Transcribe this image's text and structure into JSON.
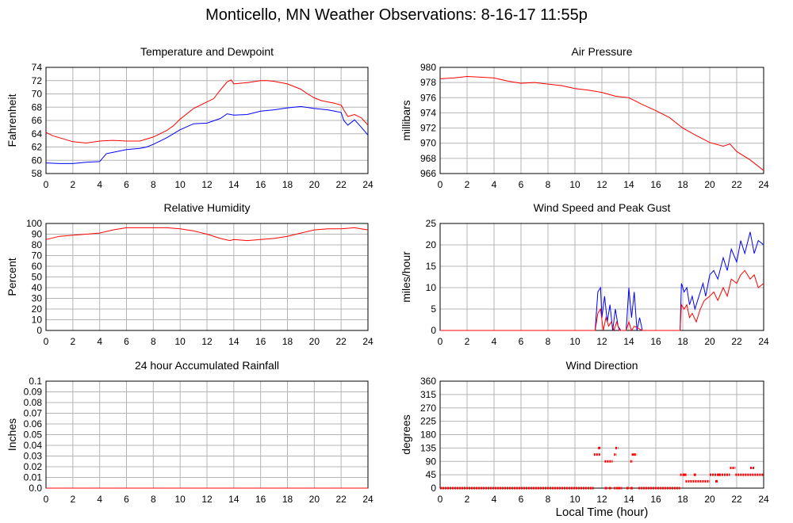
{
  "page": {
    "title": "Monticello, MN Weather Observations: 8-16-17 11:55p"
  },
  "colors": {
    "red": "#ff0000",
    "blue": "#0000ff",
    "grid": "#b4b4b4",
    "frame": "#000000"
  },
  "chart_data": [
    {
      "id": "temp",
      "type": "line",
      "title": "Temperature and Dewpoint",
      "xlabel": "",
      "ylabel": "Fahrenheit",
      "xlim": [
        0,
        24
      ],
      "ylim": [
        58,
        74
      ],
      "xticks": [
        0,
        2,
        4,
        6,
        8,
        10,
        12,
        14,
        16,
        18,
        20,
        22,
        24
      ],
      "yticks": [
        58,
        60,
        62,
        64,
        66,
        68,
        70,
        72,
        74
      ],
      "series": [
        {
          "color": "#ff0000",
          "x": [
            0,
            0.5,
            1,
            1.5,
            2,
            3,
            4,
            5,
            6,
            7,
            8,
            8.5,
            9,
            9.5,
            10,
            11,
            12,
            12.5,
            13,
            13.5,
            13.8,
            14,
            15,
            16,
            16.5,
            17,
            18,
            19,
            19.5,
            20,
            20.5,
            21,
            21.5,
            22,
            22.2,
            22.5,
            23,
            23.5,
            24
          ],
          "y": [
            64.2,
            63.7,
            63.4,
            63.1,
            62.8,
            62.6,
            62.9,
            63.0,
            62.9,
            62.9,
            63.5,
            64.0,
            64.5,
            65.2,
            66.2,
            67.8,
            68.8,
            69.3,
            70.6,
            71.8,
            72.1,
            71.5,
            71.7,
            72.0,
            72.0,
            71.9,
            71.5,
            70.7,
            70.0,
            69.4,
            69.0,
            68.8,
            68.6,
            68.3,
            67.6,
            66.6,
            66.9,
            66.4,
            65.3
          ]
        },
        {
          "color": "#0000ff",
          "x": [
            0,
            1,
            2,
            3,
            4,
            4.5,
            5,
            6,
            7,
            7.5,
            8,
            9,
            10,
            11,
            12,
            13,
            13.5,
            14,
            15,
            16,
            17,
            18,
            19,
            20,
            21,
            21.5,
            22,
            22.2,
            22.5,
            23,
            23.5,
            24
          ],
          "y": [
            59.6,
            59.5,
            59.5,
            59.7,
            59.8,
            61.0,
            61.2,
            61.6,
            61.8,
            62.0,
            62.4,
            63.4,
            64.6,
            65.5,
            65.6,
            66.3,
            67.0,
            66.8,
            66.9,
            67.4,
            67.6,
            67.9,
            68.1,
            67.8,
            67.6,
            67.4,
            67.2,
            66.0,
            65.3,
            66.1,
            65.0,
            63.8
          ]
        }
      ]
    },
    {
      "id": "pressure",
      "type": "line",
      "title": "Air Pressure",
      "xlabel": "",
      "ylabel": "millibars",
      "xlim": [
        0,
        24
      ],
      "ylim": [
        966,
        980
      ],
      "xticks": [
        0,
        2,
        4,
        6,
        8,
        10,
        12,
        14,
        16,
        18,
        20,
        22,
        24
      ],
      "yticks": [
        966,
        968,
        970,
        972,
        974,
        976,
        978,
        980
      ],
      "series": [
        {
          "color": "#ff0000",
          "x": [
            0,
            1,
            2,
            3,
            4,
            5,
            6,
            7,
            8,
            9,
            10,
            11,
            12,
            13,
            14,
            15,
            16,
            17,
            18,
            19,
            20,
            21,
            21.5,
            22,
            23,
            24
          ],
          "y": [
            978.5,
            978.6,
            978.8,
            978.7,
            978.6,
            978.2,
            977.9,
            978.0,
            977.8,
            977.6,
            977.2,
            977.0,
            976.7,
            976.2,
            976.0,
            975.1,
            974.3,
            973.4,
            972.0,
            971.0,
            970.1,
            969.6,
            969.9,
            968.9,
            967.8,
            966.4
          ]
        }
      ]
    },
    {
      "id": "humidity",
      "type": "line",
      "title": "Relative Humidity",
      "xlabel": "",
      "ylabel": "Percent",
      "xlim": [
        0,
        24
      ],
      "ylim": [
        0,
        100
      ],
      "xticks": [
        0,
        2,
        4,
        6,
        8,
        10,
        12,
        14,
        16,
        18,
        20,
        22,
        24
      ],
      "yticks": [
        0,
        10,
        20,
        30,
        40,
        50,
        60,
        70,
        80,
        90,
        100
      ],
      "series": [
        {
          "color": "#ff0000",
          "x": [
            0,
            1,
            2,
            3,
            4,
            5,
            6,
            7,
            8,
            9,
            10,
            11,
            12,
            13,
            13.7,
            14,
            15,
            16,
            17,
            18,
            19,
            20,
            21,
            22,
            23,
            24
          ],
          "y": [
            85,
            88,
            89,
            90,
            91,
            94,
            96,
            96,
            96,
            96,
            95,
            93,
            90,
            86,
            84,
            85,
            84,
            85,
            86,
            88,
            91,
            94,
            95,
            95,
            96,
            94
          ]
        }
      ]
    },
    {
      "id": "wind",
      "type": "line",
      "title": "Wind Speed and Peak Gust",
      "xlabel": "",
      "ylabel": "miles/hour",
      "xlim": [
        0,
        24
      ],
      "ylim": [
        0,
        25
      ],
      "xticks": [
        0,
        2,
        4,
        6,
        8,
        10,
        12,
        14,
        16,
        18,
        20,
        22,
        24
      ],
      "yticks": [
        0,
        5,
        10,
        15,
        20,
        25
      ],
      "series": [
        {
          "color": "#0000ff",
          "x": [
            0,
            11.5,
            11.7,
            11.9,
            12.0,
            12.2,
            12.4,
            12.6,
            12.8,
            13.0,
            13.2,
            13.4,
            13.8,
            14.0,
            14.2,
            14.4,
            14.6,
            14.8,
            15,
            17.8,
            17.9,
            18.1,
            18.3,
            18.5,
            18.7,
            18.9,
            19.1,
            19.3,
            19.5,
            19.7,
            20,
            20.3,
            20.6,
            21,
            21.3,
            21.6,
            22,
            22.3,
            22.6,
            23,
            23.3,
            23.6,
            24
          ],
          "y": [
            0,
            0,
            9,
            10,
            3,
            8,
            2,
            6,
            0,
            5,
            1,
            0,
            0,
            10,
            3,
            9,
            0,
            3,
            0,
            0,
            11,
            9,
            10,
            6,
            8,
            5,
            7,
            9,
            11,
            8,
            13,
            14,
            12,
            17,
            14,
            19,
            16,
            21,
            18,
            23,
            18,
            21,
            20
          ]
        },
        {
          "color": "#ff0000",
          "x": [
            0,
            11.5,
            11.7,
            11.9,
            12.1,
            12.3,
            12.5,
            12.7,
            12.9,
            13.1,
            13.3,
            13.8,
            14.0,
            14.2,
            14.4,
            15,
            17.8,
            17.9,
            18.1,
            18.3,
            18.5,
            18.7,
            19,
            19.3,
            19.6,
            20,
            20.3,
            20.6,
            21,
            21.3,
            21.6,
            22,
            22.3,
            22.6,
            23,
            23.3,
            23.6,
            24
          ],
          "y": [
            0,
            0,
            4,
            5,
            0,
            3,
            1,
            2,
            0,
            2,
            0,
            0,
            2,
            0,
            1,
            0,
            0,
            6,
            5,
            6,
            3,
            4,
            2,
            5,
            7,
            8,
            9,
            7,
            10,
            8,
            12,
            11,
            13,
            14,
            12,
            13,
            10,
            11
          ]
        }
      ]
    },
    {
      "id": "rain",
      "type": "line",
      "title": "24 hour Accumulated Rainfall",
      "xlabel": "",
      "ylabel": "Inches",
      "xlim": [
        0,
        24
      ],
      "ylim": [
        0,
        0.1
      ],
      "xticks": [
        0,
        2,
        4,
        6,
        8,
        10,
        12,
        14,
        16,
        18,
        20,
        22,
        24
      ],
      "yticks": [
        0.0,
        0.01,
        0.02,
        0.03,
        0.04,
        0.05,
        0.06,
        0.07,
        0.08,
        0.09,
        0.1
      ],
      "ytick_labels": [
        "0.0",
        "0.01",
        "0.02",
        "0.03",
        "0.04",
        "0.05",
        "0.06",
        "0.07",
        "0.08",
        "0.09",
        "0.1"
      ],
      "series": [
        {
          "color": "#ff0000",
          "x": [
            0,
            24
          ],
          "y": [
            0,
            0
          ]
        }
      ]
    },
    {
      "id": "direction",
      "type": "scatter",
      "title": "Wind Direction",
      "xlabel": "Local Time (hour)",
      "ylabel": "degrees",
      "xlim": [
        0,
        24
      ],
      "ylim": [
        0,
        360
      ],
      "xticks": [
        0,
        2,
        4,
        6,
        8,
        10,
        12,
        14,
        16,
        18,
        20,
        22,
        24
      ],
      "yticks": [
        0,
        45,
        90,
        135,
        180,
        225,
        270,
        315,
        360
      ],
      "segments": [
        {
          "x": [
            0,
            11.4
          ],
          "y": [
            0,
            0
          ]
        },
        {
          "x": [
            11.4,
            11.9
          ],
          "y": [
            113,
            113
          ]
        },
        {
          "x": [
            12.2,
            12.8
          ],
          "y": [
            90,
            90
          ]
        },
        {
          "x": [
            13.0,
            13.2
          ],
          "y": [
            135,
            135
          ]
        },
        {
          "x": [
            12.9,
            13.1
          ],
          "y": [
            113,
            113
          ]
        },
        {
          "x": [
            14.1,
            14.3
          ],
          "y": [
            90,
            90
          ]
        },
        {
          "x": [
            14.4,
            14.6
          ],
          "y": [
            113,
            113
          ]
        },
        {
          "x": [
            12.9,
            13.5
          ],
          "y": [
            0,
            0
          ]
        },
        {
          "x": [
            14.7,
            17.8
          ],
          "y": [
            0,
            0
          ]
        },
        {
          "x": [
            17.8,
            18.3
          ],
          "y": [
            45,
            45
          ]
        },
        {
          "x": [
            18.2,
            20.0
          ],
          "y": [
            23,
            23
          ]
        },
        {
          "x": [
            20.0,
            21.5
          ],
          "y": [
            45,
            45
          ]
        },
        {
          "x": [
            21.5,
            21.9
          ],
          "y": [
            68,
            68
          ]
        },
        {
          "x": [
            21.9,
            24
          ],
          "y": [
            45,
            45
          ]
        },
        {
          "x": [
            23.0,
            23.3
          ],
          "y": [
            68,
            68
          ]
        }
      ],
      "points": [
        {
          "x": 11.8,
          "y": 135
        },
        {
          "x": 12.3,
          "y": 0
        },
        {
          "x": 12.6,
          "y": 0
        },
        {
          "x": 13.3,
          "y": 0
        },
        {
          "x": 13.9,
          "y": 0
        },
        {
          "x": 14.2,
          "y": 0
        },
        {
          "x": 14.3,
          "y": 113
        },
        {
          "x": 18.1,
          "y": 45
        },
        {
          "x": 18.9,
          "y": 45
        },
        {
          "x": 20.5,
          "y": 23
        },
        {
          "x": 20.7,
          "y": 45
        }
      ]
    }
  ]
}
